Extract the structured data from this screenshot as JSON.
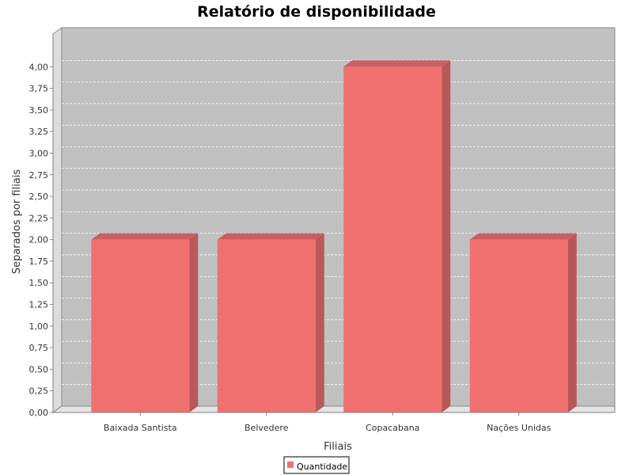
{
  "chart_data": {
    "type": "bar",
    "title": "Relatório de disponibilidade",
    "xlabel": "Filiais",
    "ylabel": "Separados por filiais",
    "categories": [
      "Baixada Santista",
      "Belvedere",
      "Copacabana",
      "Nações Unidas"
    ],
    "series": [
      {
        "name": "Quantidade",
        "values": [
          2,
          2,
          4,
          2
        ],
        "color": "#f07070"
      }
    ],
    "ylim": [
      0,
      4.25
    ],
    "yticks": [
      "0,00",
      "0,25",
      "0,50",
      "0,75",
      "1,00",
      "1,25",
      "1,50",
      "1,75",
      "2,00",
      "2,25",
      "2,50",
      "2,75",
      "3,00",
      "3,25",
      "3,50",
      "3,75",
      "4,00"
    ],
    "ytick_values": [
      0,
      0.25,
      0.5,
      0.75,
      1,
      1.25,
      1.5,
      1.75,
      2,
      2.25,
      2.5,
      2.75,
      3,
      3.25,
      3.5,
      3.75,
      4
    ],
    "grid": true,
    "legend_position": "bottom-center",
    "style": "3d",
    "colors": {
      "plot_background": "#c0c0c0",
      "gridline": "#ffffff",
      "bar_front": "#f07070",
      "bar_side": "#b85858",
      "bar_top": "#c86060"
    }
  }
}
